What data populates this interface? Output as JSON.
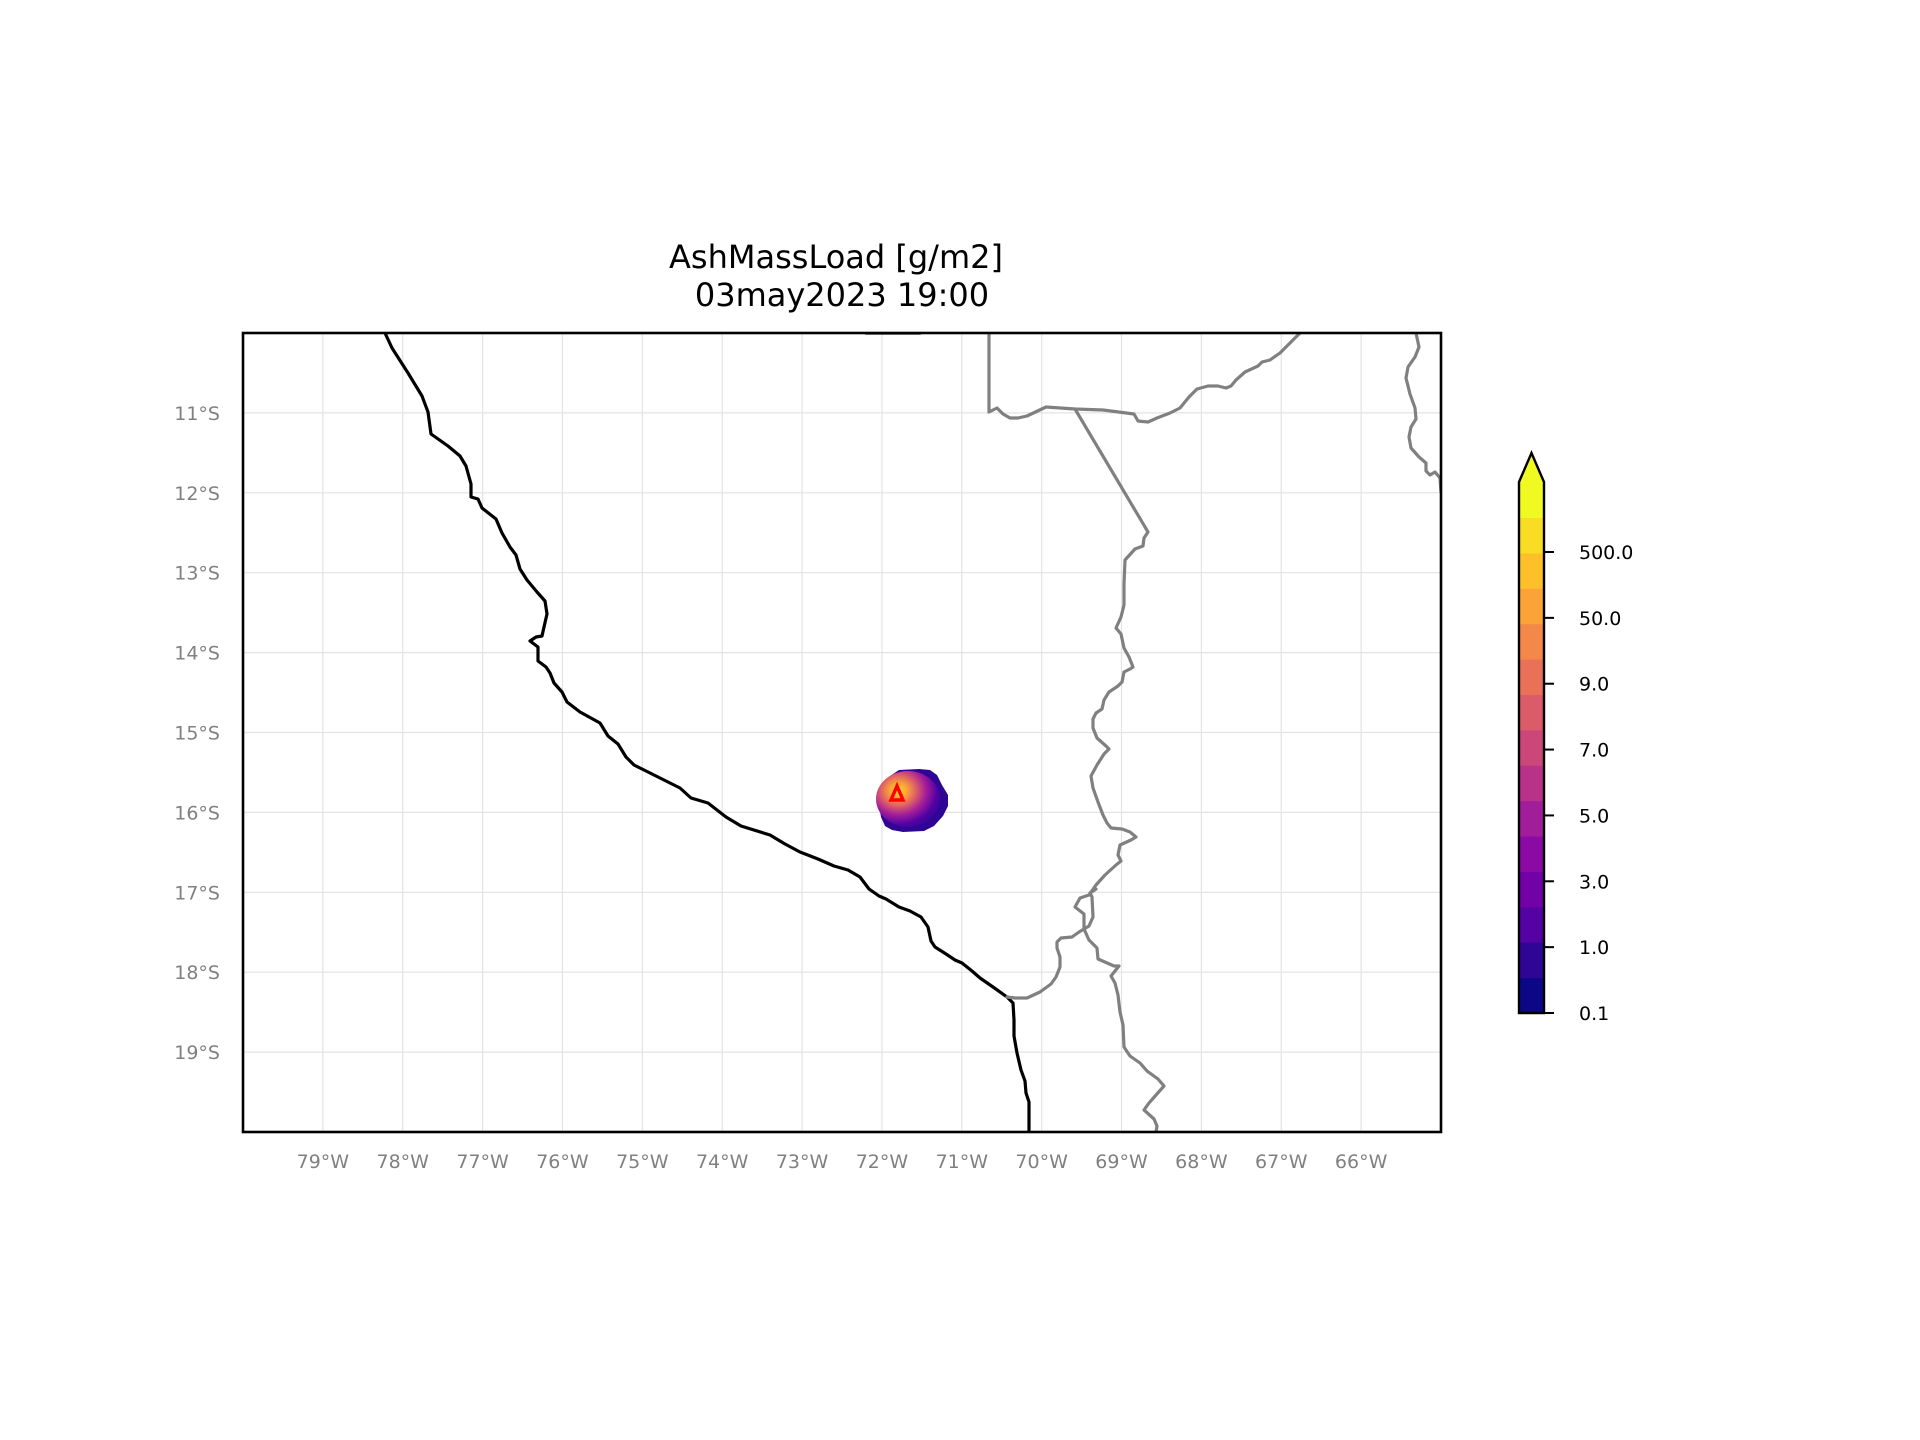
{
  "map": {
    "title": "AshMassLoad [g/m2]",
    "subtitle": "03may2023 19:00",
    "extent": {
      "lon_min": -80.0,
      "lon_max": -65.0,
      "lat_min": -20.0,
      "lat_max": -10.0
    },
    "lat_ticks": [
      "11°S",
      "12°S",
      "13°S",
      "14°S",
      "15°S",
      "16°S",
      "17°S",
      "18°S",
      "19°S"
    ],
    "lon_ticks": [
      "79°W",
      "78°W",
      "77°W",
      "76°W",
      "75°W",
      "74°W",
      "73°W",
      "72°W",
      "71°W",
      "70°W",
      "69°W",
      "68°W",
      "67°W",
      "66°W"
    ],
    "gridlines": true,
    "volcano": {
      "name": "volcano-marker",
      "lon": -71.85,
      "lat": -15.78,
      "color": "#ff0000"
    },
    "ash_plume": {
      "center_lon": -71.7,
      "center_lat": -15.85
    }
  },
  "colorbar": {
    "tick_labels": [
      "0.1",
      "1.0",
      "3.0",
      "5.0",
      "7.0",
      "9.0",
      "50.0",
      "500.0"
    ],
    "colors": [
      "#0c0786",
      "#2f0596",
      "#5402a3",
      "#7201a8",
      "#8b0aa5",
      "#a21d9a",
      "#b93289",
      "#cb4779",
      "#db5c68",
      "#e97158",
      "#f48849",
      "#fca338",
      "#fec029",
      "#f9dd24",
      "#f0f921"
    ],
    "extend": "max"
  }
}
